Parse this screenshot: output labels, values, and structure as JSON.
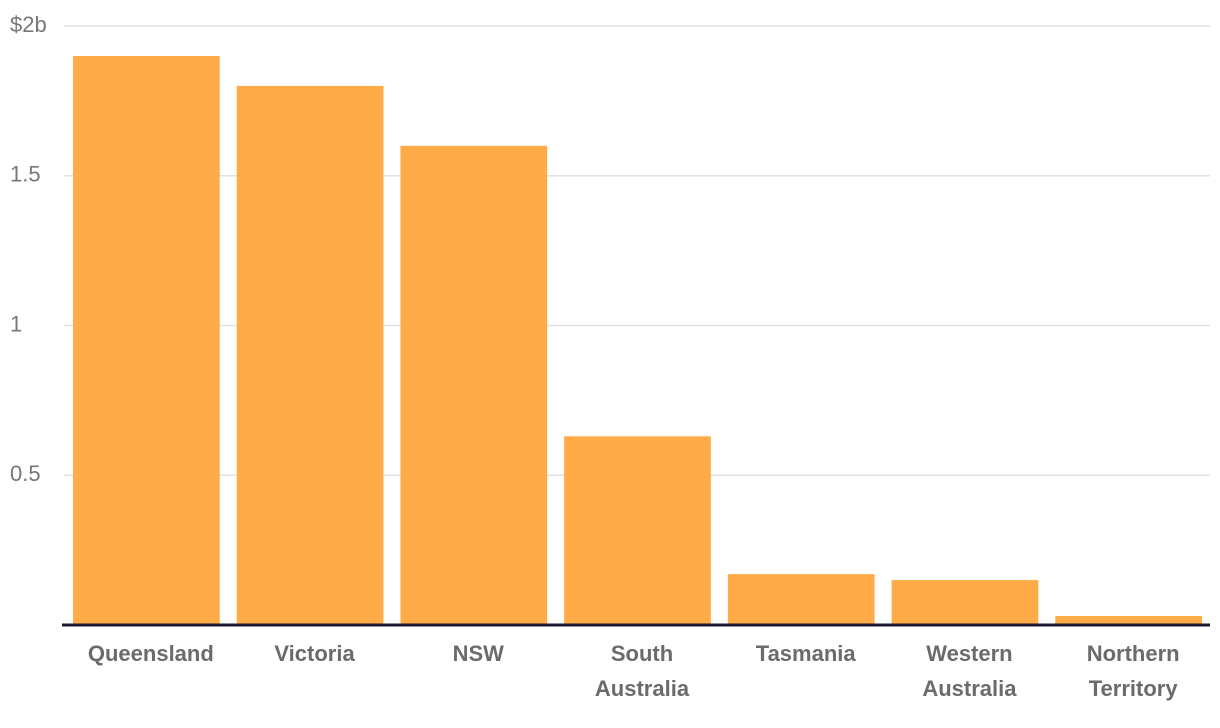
{
  "chart_data": {
    "type": "bar",
    "categories": [
      "Queensland",
      "Victoria",
      "NSW",
      "South Australia",
      "Tasmania",
      "Western Australia",
      "Northern Territory"
    ],
    "values": [
      1.9,
      1.8,
      1.6,
      0.63,
      0.17,
      0.15,
      0.03
    ],
    "color": "#ffab48",
    "ylim": [
      0,
      2
    ],
    "yticks": [
      0.5,
      1,
      1.5,
      {
        "value": 2,
        "label": "$2b"
      }
    ],
    "grid": true
  }
}
